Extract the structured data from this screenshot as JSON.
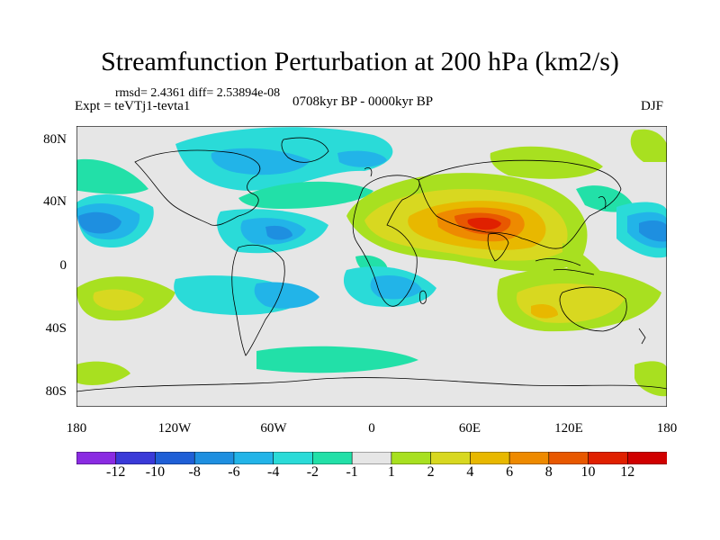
{
  "header": {
    "title": "Streamfunction Perturbation at 200 hPa (km2/s)",
    "stats": "rmsd= 2.4361 diff= 2.53894e-08",
    "experiment": "Expt = teVTj1-tevta1",
    "period": "0708kyr BP - 0000kyr BP",
    "season": "DJF"
  },
  "axes": {
    "y_ticks": [
      "80N",
      "40N",
      "0",
      "40S",
      "80S"
    ],
    "x_ticks": [
      "180",
      "120W",
      "60W",
      "0",
      "60E",
      "120E",
      "180"
    ]
  },
  "colorbar": {
    "labels": [
      "-12",
      "-10",
      "-8",
      "-6",
      "-4",
      "-2",
      "-1",
      "1",
      "2",
      "4",
      "6",
      "8",
      "10",
      "12"
    ],
    "colors": [
      "#8a2be2",
      "#3a3ad8",
      "#1f5fd6",
      "#1e8fe0",
      "#22b4e8",
      "#2adbd8",
      "#22e0a8",
      "#e6e6e6",
      "#a8e020",
      "#d8d820",
      "#e8b800",
      "#ee8a00",
      "#e85800",
      "#e02000",
      "#d00000"
    ]
  },
  "map": {
    "projection": "cylindrical equidistant",
    "lon_range": [
      -180,
      180
    ],
    "lat_range": [
      -90,
      90
    ],
    "background_color": "#e6e6e6",
    "coastline_color": "#000000"
  }
}
